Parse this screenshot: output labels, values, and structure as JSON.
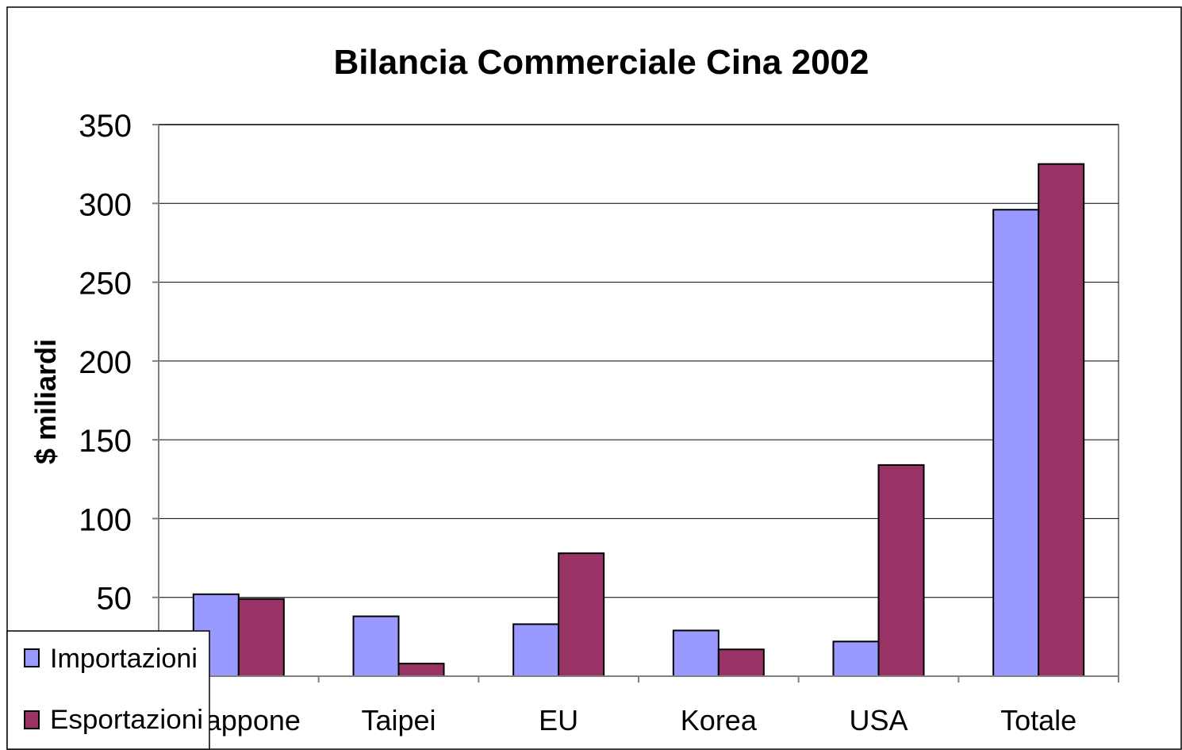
{
  "chart_data": {
    "type": "bar",
    "title": "Bilancia Commerciale Cina 2002",
    "xlabel": "",
    "ylabel": "$ miliardi",
    "ylim": [
      0,
      350
    ],
    "yticks": [
      "50",
      "100",
      "150",
      "200",
      "250",
      "300",
      "350"
    ],
    "grid": true,
    "legend_position": "bottom-left",
    "categories": [
      "Giappone",
      "Taipei",
      "EU",
      "Korea",
      "USA",
      "Totale"
    ],
    "series": [
      {
        "name": "Importazioni",
        "color": "#9999ff",
        "values": [
          52,
          38,
          33,
          29,
          22,
          296
        ]
      },
      {
        "name": "Esportazioni",
        "color": "#993366",
        "values": [
          49,
          8,
          78,
          17,
          134,
          325
        ]
      }
    ]
  }
}
